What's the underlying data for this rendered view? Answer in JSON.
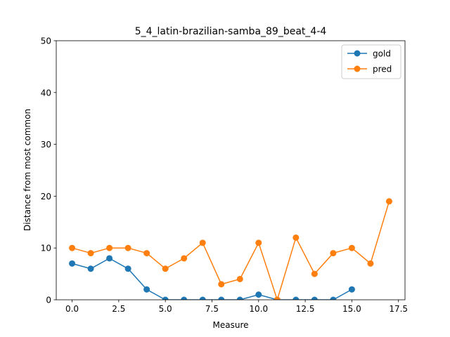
{
  "chart_data": {
    "type": "line",
    "title": "5_4_latin-brazilian-samba_89_beat_4-4",
    "xlabel": "Measure",
    "ylabel": "Distance from most common",
    "xlim": [
      -0.85,
      17.85
    ],
    "ylim": [
      0,
      50
    ],
    "xticks": [
      0.0,
      2.5,
      5.0,
      7.5,
      10.0,
      12.5,
      15.0,
      17.5
    ],
    "xtick_labels": [
      "0.0",
      "2.5",
      "5.0",
      "7.5",
      "10.0",
      "12.5",
      "15.0",
      "17.5"
    ],
    "yticks": [
      0,
      10,
      20,
      30,
      40,
      50
    ],
    "ytick_labels": [
      "0",
      "10",
      "20",
      "30",
      "40",
      "50"
    ],
    "grid": false,
    "legend": "top-right",
    "series": [
      {
        "name": "gold",
        "color": "#1f77b4",
        "x": [
          0,
          1,
          2,
          3,
          4,
          5,
          6,
          7,
          8,
          9,
          10,
          11,
          12,
          13,
          14,
          15
        ],
        "values": [
          7,
          6,
          8,
          6,
          2,
          0,
          0,
          0,
          0,
          0,
          1,
          0,
          0,
          0,
          0,
          2
        ]
      },
      {
        "name": "pred",
        "color": "#ff7f0e",
        "x": [
          0,
          1,
          2,
          3,
          4,
          5,
          6,
          7,
          8,
          9,
          10,
          11,
          12,
          13,
          14,
          15,
          16,
          17
        ],
        "values": [
          10,
          9,
          10,
          10,
          9,
          6,
          8,
          11,
          3,
          4,
          11,
          0,
          12,
          5,
          9,
          10,
          7,
          19
        ]
      }
    ]
  }
}
